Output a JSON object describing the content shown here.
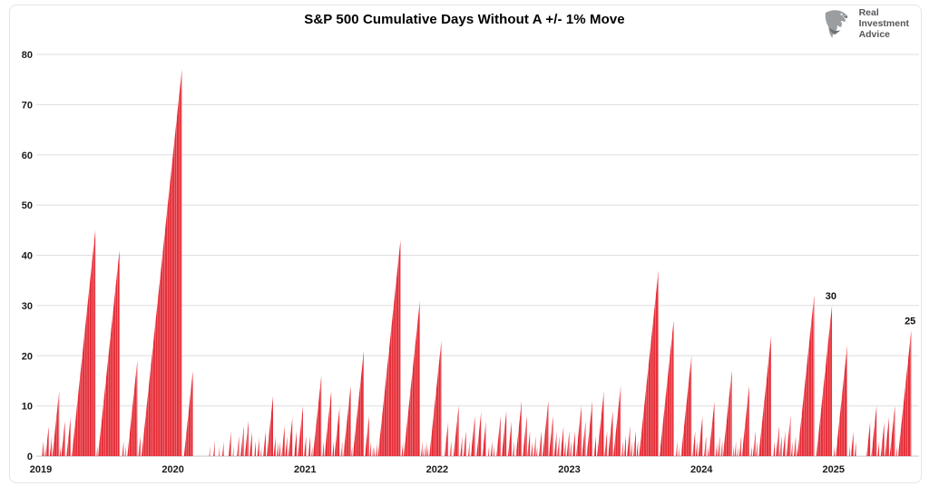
{
  "header": {
    "title": "S&P 500 Cumulative Days Without A +/- 1% Move",
    "logo": {
      "line1": "Real",
      "line2": "Investment",
      "line3": "Advice"
    }
  },
  "chart_data": {
    "type": "bar",
    "title": "S&P 500 Cumulative Days Without A +/- 1% Move",
    "xlabel": "",
    "ylabel": "",
    "x_tick_labels": [
      "2019",
      "2020",
      "2021",
      "2022",
      "2023",
      "2024",
      "2025"
    ],
    "y_ticks": [
      0,
      10,
      20,
      30,
      40,
      50,
      60,
      70,
      80
    ],
    "ylim": [
      0,
      80
    ],
    "grid": true,
    "legend": false,
    "bar_color": "#e62d37",
    "stripe_color": "#f2a3a8",
    "gridline_color": "#dedede",
    "baseline_color": "#c6c6c6",
    "days_per_year": 252,
    "total_days_span": 1675,
    "series": [
      {
        "name": "Consecutive trading days without a +/- 1% move",
        "encoding": "signed run-length: positive N = streak of N days with bar heights rising 1..N then resetting; negative N = N days at zero",
        "runs": [
          -2,
          3,
          -1,
          2,
          -1,
          6,
          -2,
          4,
          -1,
          13,
          -1,
          2,
          -1,
          7,
          -3,
          8,
          -2,
          45,
          -2,
          2,
          -1,
          41,
          -5,
          3,
          -2,
          2,
          -3,
          19,
          -2,
          4,
          -2,
          77,
          -4,
          17,
          -31,
          2,
          -6,
          3,
          -7,
          2,
          -5,
          3,
          -9,
          5,
          -3,
          2,
          -6,
          4,
          -3,
          6,
          -2,
          7,
          -2,
          5,
          -4,
          3,
          -3,
          4,
          -2,
          2,
          -3,
          5,
          -2,
          12,
          -1,
          4,
          -2,
          3,
          -1,
          3,
          -2,
          6,
          -1,
          4,
          -2,
          8,
          -3,
          5,
          -2,
          10,
          -2,
          4,
          -2,
          -2,
          4,
          -2,
          2,
          -1,
          16,
          -2,
          3,
          -1,
          13,
          -2,
          3,
          -1,
          10,
          -2,
          3,
          -2,
          14,
          -1,
          2,
          -1,
          21,
          -2,
          8,
          -1,
          3,
          -2,
          2,
          -1,
          2,
          -2,
          3,
          -1,
          43,
          -2,
          3,
          -1,
          31,
          -2,
          3,
          -1,
          2,
          -2,
          3,
          -1,
          2,
          -2,
          23,
          -6,
          7,
          -3,
          3,
          -4,
          10,
          -3,
          4,
          -2,
          5,
          -4,
          3,
          -2,
          8,
          -3,
          9,
          -2,
          7,
          -4,
          2,
          -3,
          3,
          -2,
          2,
          -4,
          8,
          -2,
          9,
          -3,
          7,
          -2,
          3,
          -3,
          11,
          -2,
          8,
          -1,
          5,
          -2,
          3,
          -2,
          4,
          -1,
          2,
          -3,
          5,
          -2,
          11,
          -1,
          8,
          -2,
          5,
          -1,
          4,
          -2,
          6,
          -1,
          3,
          -2,
          5,
          -1,
          3,
          -2,
          5,
          -2,
          10,
          -1,
          7,
          -2,
          11,
          -3,
          4,
          -2,
          13,
          -1,
          5,
          -2,
          9,
          -1,
          14,
          -2,
          3,
          -1,
          4,
          -2,
          6,
          -1,
          3,
          -2,
          5,
          -1,
          3,
          -2,
          37,
          -2,
          27,
          -4,
          3,
          -2,
          2,
          -3,
          20,
          -2,
          5,
          -1,
          3,
          -2,
          8,
          -1,
          -2,
          4,
          -2,
          2,
          -1,
          11,
          -2,
          3,
          -1,
          4,
          -2,
          3,
          -1,
          17,
          -2,
          2,
          -1,
          3,
          -2,
          2,
          -2,
          4,
          -1,
          14,
          -3,
          2,
          -2,
          5,
          -1,
          3,
          -2,
          24,
          -4,
          3,
          -2,
          6,
          -1,
          4,
          -2,
          5,
          -2,
          8,
          -1,
          3,
          -2,
          4,
          -1,
          2,
          32,
          -4,
          30,
          -3,
          2,
          -2,
          22,
          -3,
          2,
          -2,
          5,
          -2,
          3,
          -20,
          7,
          -2,
          10,
          -2,
          3,
          -3,
          7,
          -1,
          8,
          -1,
          10,
          -2,
          2,
          -2,
          25
        ]
      }
    ],
    "notable_peaks": [
      77,
      45,
      43,
      41,
      37,
      32,
      31,
      30,
      27,
      25,
      24
    ],
    "annotations": [
      {
        "text": "30",
        "day": 1507,
        "value": 30
      },
      {
        "text": "25",
        "day": 1658,
        "value": 25
      }
    ]
  }
}
